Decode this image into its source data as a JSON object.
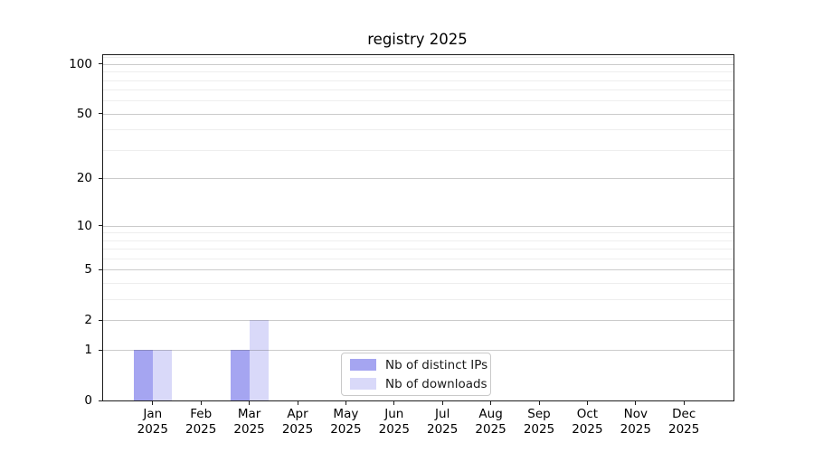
{
  "chart_data": {
    "type": "bar",
    "title": "registry 2025",
    "categories": [
      "Jan",
      "Feb",
      "Mar",
      "Apr",
      "May",
      "Jun",
      "Jul",
      "Aug",
      "Sep",
      "Oct",
      "Nov",
      "Dec"
    ],
    "category_year": "2025",
    "series": [
      {
        "name": "Nb of distinct IPs",
        "color": "#a5a5f1",
        "values": [
          1,
          0,
          1,
          0,
          0,
          0,
          0,
          0,
          0,
          0,
          0,
          0
        ]
      },
      {
        "name": "Nb of downloads",
        "color": "#d9d9f9",
        "values": [
          1,
          0,
          2,
          0,
          0,
          0,
          0,
          0,
          0,
          0,
          0,
          0
        ]
      }
    ],
    "y_axis": {
      "scale": "log10(value+1)",
      "ticks": [
        0,
        1,
        2,
        5,
        10,
        20,
        50,
        100
      ],
      "minor_gridlines": [
        3,
        4,
        6,
        7,
        8,
        9,
        30,
        40,
        60,
        70,
        80,
        90,
        110
      ],
      "range": [
        0,
        112
      ]
    },
    "x_axis": {
      "label_lines": 2
    },
    "grid": "horizontal-major-and-minor",
    "legend": {
      "position": "lower-center-inside",
      "border_color": "#c9c9c9",
      "background": "#ffffff"
    },
    "colors": {
      "frame": "#1c1c1c",
      "major_grid": "#cdcdcd",
      "minor_grid": "#eeeeee"
    }
  }
}
